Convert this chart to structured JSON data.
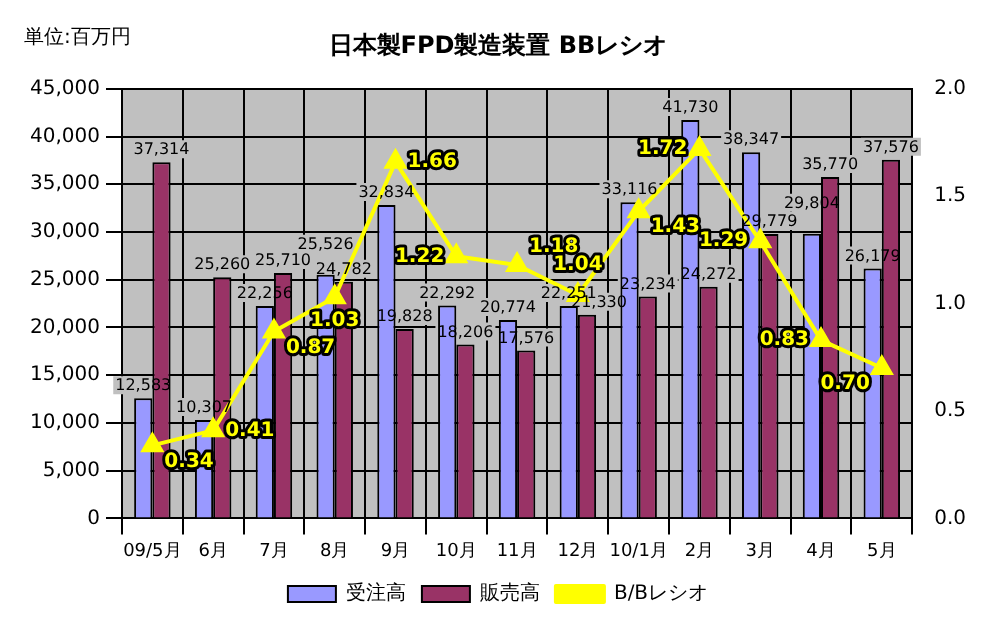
{
  "chart_data": {
    "type": "bar",
    "title": "日本製FPD製造装置 BBレシオ",
    "annotations": [
      "単位:百万円"
    ],
    "categories": [
      "09/5月",
      "6月",
      "7月",
      "8月",
      "9月",
      "10月",
      "11月",
      "12月",
      "10/1月",
      "2月",
      "3月",
      "4月",
      "5月"
    ],
    "series": [
      {
        "name": "受注高",
        "color": "#9999ff",
        "values": [
          12583,
          10307,
          22256,
          25526,
          32834,
          22292,
          20774,
          22251,
          33116,
          41730,
          38347,
          29804,
          26179
        ],
        "value_labels": [
          "12,583",
          "10,307",
          "22,256",
          "25,526",
          "32,834",
          "22,292",
          "20,774",
          "22,251",
          "33,116",
          "41,730",
          "38,347",
          "29,804",
          "26,179"
        ]
      },
      {
        "name": "販売高",
        "color": "#993366",
        "values": [
          37314,
          25260,
          25710,
          24782,
          19828,
          18206,
          17576,
          21330,
          23234,
          24272,
          29779,
          35770,
          37576
        ],
        "value_labels": [
          "37,314",
          "25,260",
          "25,710",
          "24,782",
          "19,828",
          "18,206",
          "17,576",
          "21,330",
          "23,234",
          "24,272",
          "29,779",
          "35,770",
          "37,576"
        ]
      },
      {
        "name": "B/Bレシオ",
        "type": "line",
        "axis": "y2",
        "color": "#ffff00",
        "marker": "triangle",
        "values": [
          0.34,
          0.41,
          0.87,
          1.03,
          1.66,
          1.22,
          1.18,
          1.04,
          1.43,
          1.72,
          1.29,
          0.83,
          0.7
        ],
        "value_labels": [
          "0.34",
          "0.41",
          "0.87",
          "1.03",
          "1.66",
          "1.22",
          "1.18",
          "1.04",
          "1.43",
          "1.72",
          "1.29",
          "0.83",
          "0.70"
        ]
      }
    ],
    "ylim": [
      0,
      45000
    ],
    "yticks": [
      {
        "value": 0,
        "label": "0"
      },
      {
        "value": 5000,
        "label": "5,000"
      },
      {
        "value": 10000,
        "label": "10,000"
      },
      {
        "value": 15000,
        "label": "15,000"
      },
      {
        "value": 20000,
        "label": "20,000"
      },
      {
        "value": 25000,
        "label": "25,000"
      },
      {
        "value": 30000,
        "label": "30,000"
      },
      {
        "value": 35000,
        "label": "35,000"
      },
      {
        "value": 40000,
        "label": "40,000"
      },
      {
        "value": 45000,
        "label": "45,000"
      }
    ],
    "y2lim": [
      0,
      2
    ],
    "y2ticks": [
      {
        "value": 0,
        "label": "0.0"
      },
      {
        "value": 0.5,
        "label": "0.5"
      },
      {
        "value": 1,
        "label": "1.0"
      },
      {
        "value": 1.5,
        "label": "1.5"
      },
      {
        "value": 2,
        "label": "2.0"
      }
    ],
    "grid": true,
    "legend": "bottom",
    "data_labels": true
  }
}
